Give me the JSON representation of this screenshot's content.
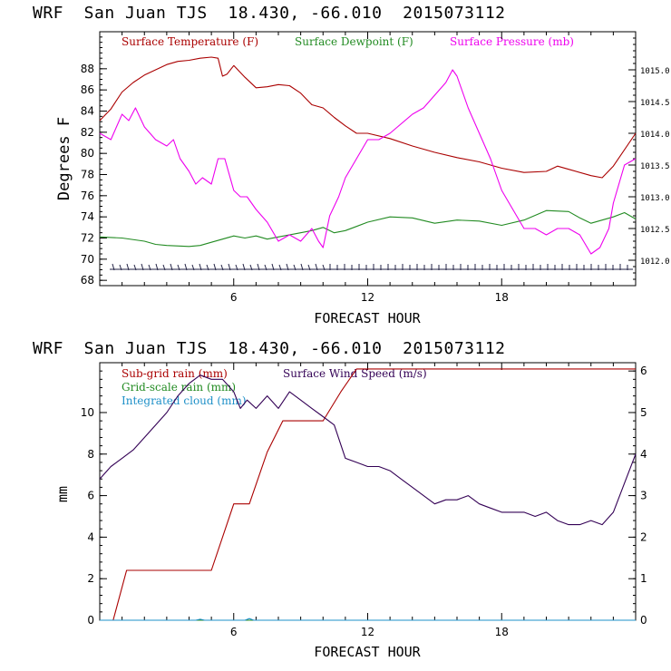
{
  "page": {
    "top_title": "WRF  San Juan TJS  18.430, -66.010  2015073112",
    "bottom_title": "WRF  San Juan TJS  18.430, -66.010  2015073112"
  },
  "chart_data": [
    {
      "type": "line",
      "xlabel": "FORECAST HOUR",
      "ylabel": "Degrees F",
      "xlim": [
        0,
        24
      ],
      "x_ticks": [
        "6",
        "12",
        "18"
      ],
      "ylim": [
        67.5,
        91.5
      ],
      "y_ticks": [
        "68",
        "70",
        "72",
        "74",
        "76",
        "78",
        "80",
        "82",
        "84",
        "86",
        "88"
      ],
      "y2lim": [
        1011.6,
        1015.6
      ],
      "y2_ticks": [
        "1012.0",
        "1012.5",
        "1013.0",
        "1013.5",
        "1014.0",
        "1014.5",
        "1015.0"
      ],
      "series": [
        {
          "name": "Surface Temperature (F)",
          "color": "#aa0000",
          "axis": "left",
          "x": [
            0,
            0.5,
            1,
            1.5,
            2,
            2.5,
            3,
            3.5,
            4,
            4.5,
            5,
            5.3,
            5.5,
            5.7,
            6,
            6.5,
            7,
            7.5,
            8,
            8.5,
            9,
            9.5,
            10,
            10.5,
            11,
            11.5,
            12,
            13,
            14,
            15,
            16,
            17,
            18,
            19,
            20,
            20.5,
            21,
            22,
            22.5,
            23,
            24
          ],
          "values": [
            83.1,
            84.2,
            85.8,
            86.7,
            87.4,
            87.9,
            88.4,
            88.7,
            88.8,
            89.0,
            89.1,
            89.0,
            87.3,
            87.5,
            88.3,
            87.2,
            86.2,
            86.3,
            86.5,
            86.4,
            85.7,
            84.6,
            84.3,
            83.4,
            82.6,
            81.9,
            81.9,
            81.4,
            80.7,
            80.1,
            79.6,
            79.2,
            78.6,
            78.2,
            78.3,
            78.8,
            78.5,
            77.9,
            77.7,
            78.8,
            81.9
          ]
        },
        {
          "name": "Surface Dewpoint (F)",
          "color": "#228b22",
          "axis": "left",
          "x": [
            0,
            1,
            2,
            2.5,
            3,
            4,
            4.5,
            5,
            6,
            6.5,
            7,
            7.5,
            8,
            9,
            9.5,
            10,
            10.5,
            11,
            11.5,
            12,
            13,
            14,
            15,
            16,
            17,
            18,
            19,
            20,
            21,
            21.5,
            22,
            23,
            23.5,
            24
          ],
          "values": [
            72.1,
            72.0,
            71.7,
            71.4,
            71.3,
            71.2,
            71.3,
            71.6,
            72.2,
            72.0,
            72.2,
            71.9,
            72.1,
            72.5,
            72.7,
            73.0,
            72.5,
            72.7,
            73.1,
            73.5,
            74.0,
            73.9,
            73.4,
            73.7,
            73.6,
            73.2,
            73.7,
            74.6,
            74.5,
            73.9,
            73.4,
            74.0,
            74.4,
            73.8
          ]
        },
        {
          "name": "Surface Pressure (mb)",
          "color": "#ee00ee",
          "axis": "right",
          "x": [
            0,
            0.5,
            1,
            1.3,
            1.6,
            2,
            2.5,
            3,
            3.3,
            3.6,
            4,
            4.3,
            4.6,
            5,
            5.3,
            5.6,
            6,
            6.3,
            6.6,
            7,
            7.5,
            8,
            8.5,
            9,
            9.5,
            9.8,
            10,
            10.3,
            10.7,
            11,
            11.5,
            12,
            12.5,
            13,
            14,
            14.5,
            15,
            15.5,
            15.8,
            16,
            16.5,
            17,
            17.5,
            18,
            18.5,
            19,
            19.5,
            20,
            20.5,
            21,
            21.5,
            22,
            22.4,
            22.8,
            23,
            23.5,
            24
          ],
          "values": [
            1014.0,
            1013.9,
            1014.3,
            1014.2,
            1014.4,
            1014.1,
            1013.9,
            1013.8,
            1013.9,
            1013.6,
            1013.4,
            1013.2,
            1013.3,
            1013.2,
            1013.6,
            1013.6,
            1013.1,
            1013.0,
            1013.0,
            1012.8,
            1012.6,
            1012.3,
            1012.4,
            1012.3,
            1012.5,
            1012.3,
            1012.2,
            1012.7,
            1013.0,
            1013.3,
            1013.6,
            1013.9,
            1013.9,
            1014.0,
            1014.3,
            1014.4,
            1014.6,
            1014.8,
            1015.0,
            1014.9,
            1014.4,
            1014.0,
            1013.6,
            1013.1,
            1012.8,
            1012.5,
            1012.5,
            1012.4,
            1012.5,
            1012.5,
            1012.4,
            1012.1,
            1012.2,
            1012.5,
            1012.9,
            1013.5,
            1013.6
          ]
        }
      ]
    },
    {
      "type": "line",
      "xlabel": "FORECAST HOUR",
      "ylabel": "mm",
      "xlim": [
        0,
        24
      ],
      "x_ticks": [
        "6",
        "12",
        "18"
      ],
      "ylim": [
        0,
        12.4
      ],
      "y_ticks": [
        "0",
        "2",
        "4",
        "6",
        "8",
        "10"
      ],
      "y2lim": [
        0,
        6.2
      ],
      "y2_ticks": [
        "0",
        "1",
        "2",
        "3",
        "4",
        "5",
        "6"
      ],
      "series": [
        {
          "name": "Sub-grid rain (mm)",
          "color": "#aa0000",
          "axis": "left",
          "x": [
            0,
            0.6,
            1.2,
            5.0,
            6.0,
            6.7,
            7.5,
            8.2,
            10.0,
            10.8,
            11.5,
            24
          ],
          "values": [
            0,
            0,
            2.4,
            2.4,
            5.6,
            5.6,
            8.1,
            9.6,
            9.6,
            11.0,
            12.1,
            12.1
          ]
        },
        {
          "name": "Grid-scale rain (mm)",
          "color": "#228b22",
          "axis": "left",
          "x": [
            0,
            24
          ],
          "values": [
            0,
            0
          ]
        },
        {
          "name": "Integrated cloud (mm)",
          "color": "#1e90c8",
          "axis": "left",
          "x": [
            0,
            4.3,
            4.5,
            4.7,
            6.5,
            6.7,
            6.9,
            24
          ],
          "values": [
            0,
            0,
            0.05,
            0,
            0,
            0.08,
            0,
            0
          ]
        },
        {
          "name": "Surface Wind Speed (m/s)",
          "color": "#330055",
          "axis": "right",
          "x": [
            0,
            0.5,
            1,
            1.5,
            2,
            2.5,
            3,
            3.5,
            4,
            4.5,
            5,
            5.5,
            6,
            6.3,
            6.6,
            7,
            7.5,
            8,
            8.5,
            9,
            9.5,
            10,
            10.5,
            11,
            11.5,
            12,
            12.5,
            13,
            13.5,
            14,
            14.5,
            15,
            15.5,
            16,
            16.5,
            17,
            17.5,
            18,
            19,
            19.5,
            20,
            20.5,
            21,
            21.5,
            22,
            22.5,
            23,
            23.5,
            24
          ],
          "values": [
            3.4,
            3.7,
            3.9,
            4.1,
            4.4,
            4.7,
            5.0,
            5.4,
            5.7,
            5.9,
            5.8,
            5.8,
            5.5,
            5.1,
            5.3,
            5.1,
            5.4,
            5.1,
            5.5,
            5.3,
            5.1,
            4.9,
            4.7,
            3.9,
            3.8,
            3.7,
            3.7,
            3.6,
            3.4,
            3.2,
            3.0,
            2.8,
            2.9,
            2.9,
            3.0,
            2.8,
            2.7,
            2.6,
            2.6,
            2.5,
            2.6,
            2.4,
            2.3,
            2.3,
            2.4,
            2.3,
            2.6,
            3.3,
            4.0
          ]
        }
      ]
    }
  ]
}
